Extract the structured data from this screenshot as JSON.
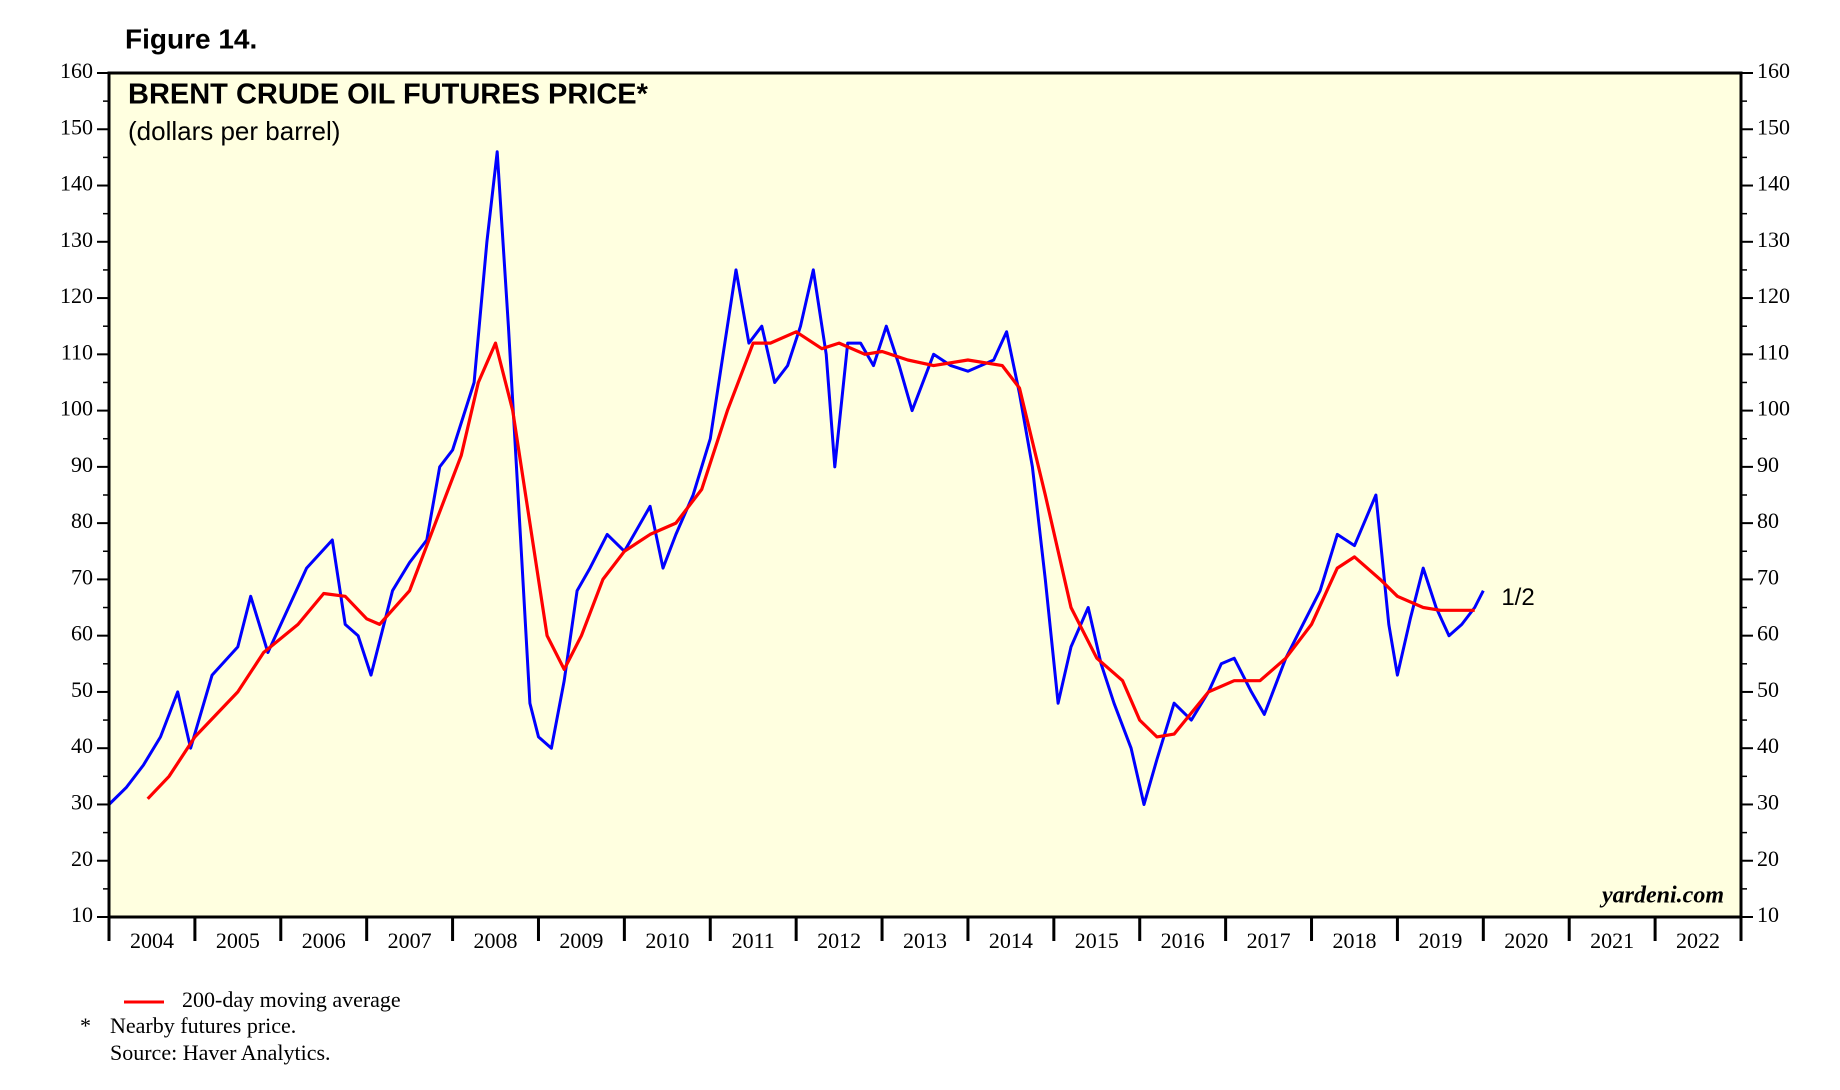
{
  "chart_data": {
    "type": "line",
    "figure_label": "Figure 14.",
    "title": "BRENT CRUDE OIL FUTURES PRICE*",
    "subtitle": "(dollars per barrel)",
    "series": [
      {
        "color": "#0000ff",
        "x": [
          2004.0,
          2004.2,
          2004.4,
          2004.6,
          2004.8,
          2004.95,
          2005.2,
          2005.5,
          2005.65,
          2005.85,
          2006.0,
          2006.3,
          2006.6,
          2006.75,
          2006.9,
          2007.05,
          2007.3,
          2007.5,
          2007.7,
          2007.85,
          2008.0,
          2008.25,
          2008.4,
          2008.52,
          2008.65,
          2008.8,
          2008.9,
          2009.0,
          2009.15,
          2009.3,
          2009.45,
          2009.6,
          2009.8,
          2010.0,
          2010.3,
          2010.45,
          2010.6,
          2010.8,
          2011.0,
          2011.15,
          2011.3,
          2011.45,
          2011.6,
          2011.75,
          2011.9,
          2012.05,
          2012.2,
          2012.35,
          2012.45,
          2012.6,
          2012.75,
          2012.9,
          2013.05,
          2013.2,
          2013.35,
          2013.6,
          2013.8,
          2014.0,
          2014.3,
          2014.45,
          2014.6,
          2014.75,
          2014.9,
          2015.05,
          2015.2,
          2015.4,
          2015.55,
          2015.7,
          2015.9,
          2016.05,
          2016.2,
          2016.4,
          2016.6,
          2016.8,
          2016.95,
          2017.1,
          2017.3,
          2017.45,
          2017.7,
          2017.9,
          2018.1,
          2018.3,
          2018.5,
          2018.75,
          2018.9,
          2019.0,
          2019.15,
          2019.3,
          2019.45,
          2019.6,
          2019.75,
          2019.9,
          2020.0
        ],
        "values": [
          30,
          33,
          37,
          42,
          50,
          40,
          53,
          58,
          67,
          57,
          62,
          72,
          77,
          62,
          60,
          53,
          68,
          73,
          77,
          90,
          93,
          105,
          130,
          146,
          115,
          75,
          48,
          42,
          40,
          52,
          68,
          72,
          78,
          75,
          83,
          72,
          78,
          85,
          95,
          110,
          125,
          112,
          115,
          105,
          108,
          115,
          125,
          110,
          90,
          112,
          112,
          108,
          115,
          108,
          100,
          110,
          108,
          107,
          109,
          114,
          103,
          90,
          70,
          48,
          58,
          65,
          55,
          48,
          40,
          30,
          38,
          48,
          45,
          50,
          55,
          56,
          50,
          46,
          56,
          62,
          68,
          78,
          76,
          85,
          62,
          53,
          63,
          72,
          65,
          60,
          62,
          65,
          68
        ]
      },
      {
        "name": "200-day moving average",
        "color": "#ff0000",
        "x": [
          2004.45,
          2004.7,
          2005.0,
          2005.5,
          2005.8,
          2006.2,
          2006.5,
          2006.75,
          2007.0,
          2007.15,
          2007.5,
          2007.8,
          2008.1,
          2008.3,
          2008.5,
          2008.7,
          2008.9,
          2009.1,
          2009.3,
          2009.5,
          2009.75,
          2010.0,
          2010.3,
          2010.6,
          2010.9,
          2011.2,
          2011.5,
          2011.7,
          2012.0,
          2012.3,
          2012.5,
          2012.8,
          2013.0,
          2013.3,
          2013.6,
          2014.0,
          2014.4,
          2014.6,
          2014.9,
          2015.2,
          2015.5,
          2015.8,
          2016.0,
          2016.2,
          2016.4,
          2016.8,
          2017.1,
          2017.4,
          2017.7,
          2018.0,
          2018.3,
          2018.5,
          2018.8,
          2019.0,
          2019.3,
          2019.5,
          2019.9
        ],
        "values": [
          31,
          35,
          42,
          50,
          57,
          62,
          67.5,
          67,
          63,
          62,
          68,
          80,
          92,
          105,
          112,
          100,
          80,
          60,
          54,
          60,
          70,
          75,
          78,
          80,
          86,
          100,
          112,
          112,
          114,
          111,
          112,
          110,
          110.5,
          109,
          108,
          109,
          108,
          104,
          85,
          65,
          56,
          52,
          45,
          42,
          42.5,
          50,
          52,
          52,
          56,
          62,
          72,
          74,
          70,
          67,
          65,
          64.5,
          64.5
        ]
      }
    ],
    "xlim": [
      2004,
      2023
    ],
    "xticks": [
      2004,
      2005,
      2006,
      2007,
      2008,
      2009,
      2010,
      2011,
      2012,
      2013,
      2014,
      2015,
      2016,
      2017,
      2018,
      2019,
      2020,
      2021,
      2022,
      2023
    ],
    "ylim": [
      10,
      160
    ],
    "yticks": [
      10,
      20,
      30,
      40,
      50,
      60,
      70,
      80,
      90,
      100,
      110,
      120,
      130,
      140,
      150,
      160
    ],
    "annotation": "1/2",
    "watermark": "yardeni.com",
    "footnote": {
      "marker": "*",
      "text": "Nearby futures price."
    },
    "source": "Source: Haver Analytics."
  }
}
